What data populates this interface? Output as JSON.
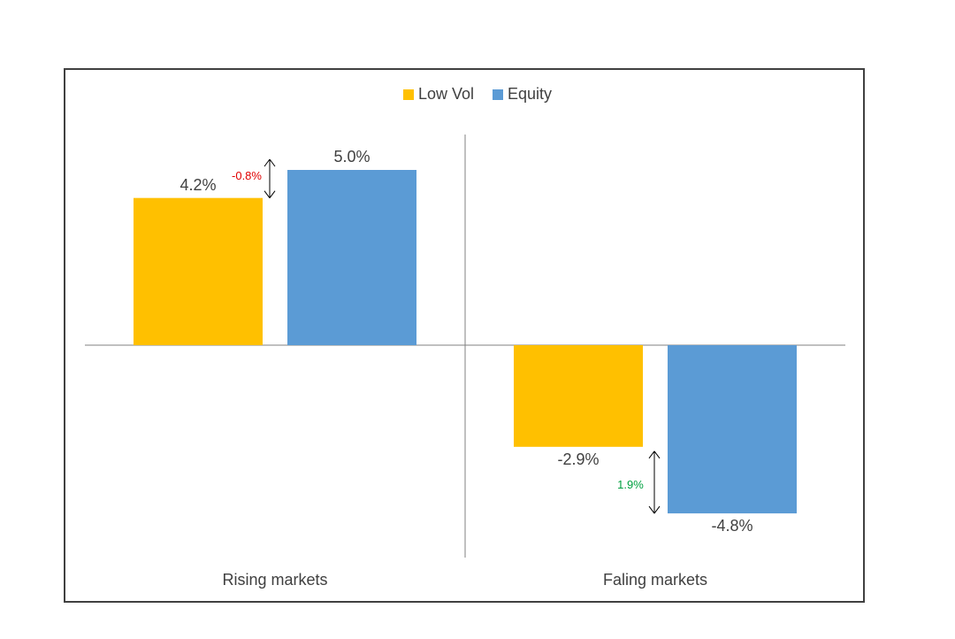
{
  "chart_data": {
    "type": "bar",
    "categories": [
      "Rising markets",
      "Faling markets"
    ],
    "series": [
      {
        "name": "Low Vol",
        "color": "#FFC000",
        "values": [
          4.2,
          -2.9
        ],
        "labels": [
          "4.2%",
          "-2.9%"
        ]
      },
      {
        "name": "Equity",
        "color": "#5B9BD5",
        "values": [
          5.0,
          -4.8
        ],
        "labels": [
          "5.0%",
          "-4.8%"
        ]
      }
    ],
    "ylim": [
      -6,
      6
    ],
    "grid": false,
    "legend": "top-center",
    "annotations": [
      {
        "category": "Rising markets",
        "text": "-0.8%",
        "color": "#E00000"
      },
      {
        "category": "Faling markets",
        "text": "1.9%",
        "color": "#00A040"
      }
    ]
  }
}
